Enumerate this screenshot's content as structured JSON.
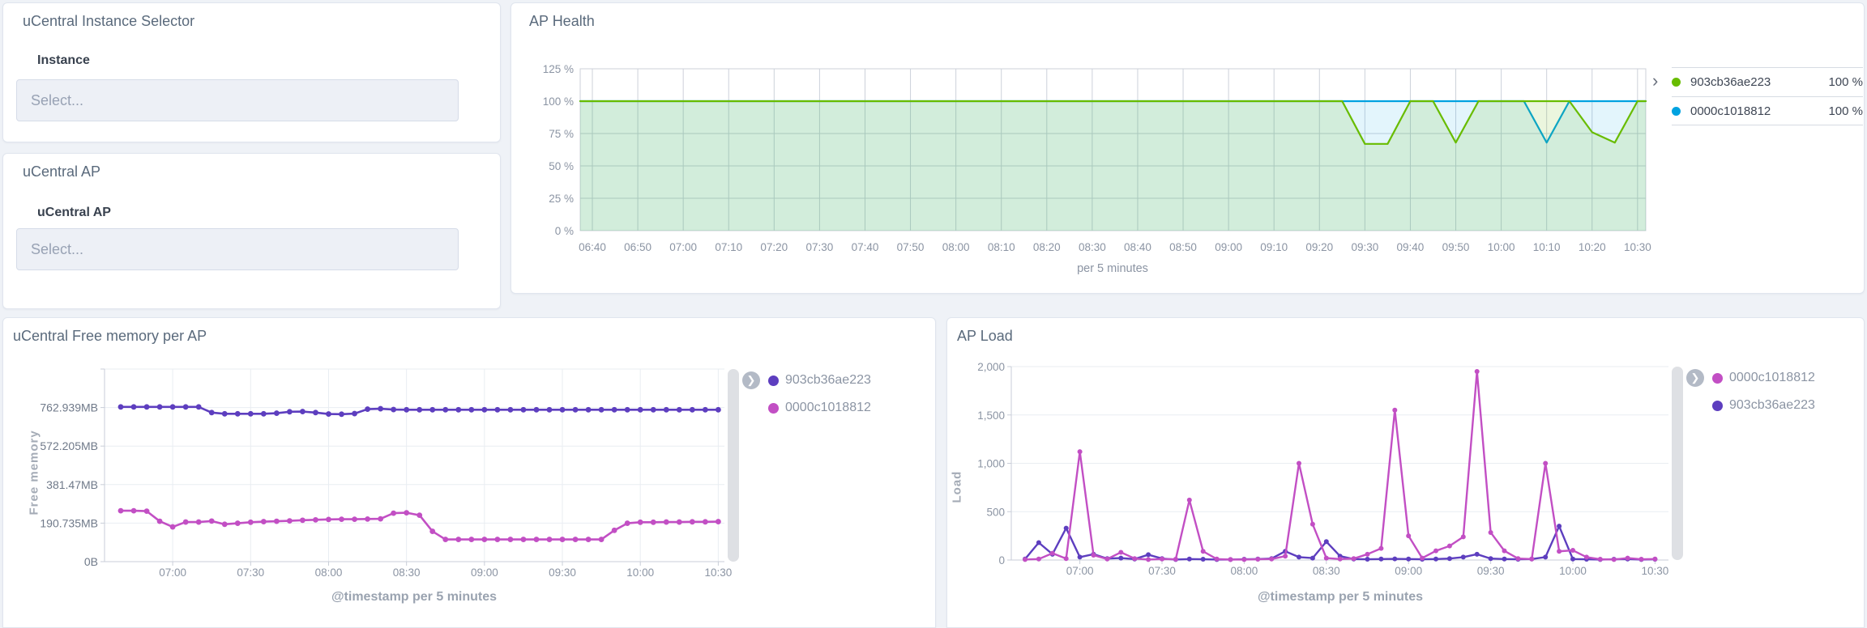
{
  "panels": {
    "instance_selector": {
      "title": "uCentral Instance Selector",
      "field_label": "Instance",
      "placeholder": "Select..."
    },
    "ap_selector": {
      "title": "uCentral AP",
      "field_label": "uCentral AP",
      "placeholder": "Select..."
    },
    "ap_health": {
      "title": "AP Health",
      "x_axis_label": "per 5 minutes",
      "legend": [
        {
          "label": "903cb36ae223",
          "value": "100 %",
          "color": "#68BC00"
        },
        {
          "label": "0000c1018812",
          "value": "100 %",
          "color": "#00A2E0"
        }
      ]
    },
    "free_memory": {
      "title": "uCentral Free memory per AP",
      "y_axis_label": "Free memory",
      "x_axis_label": "@timestamp per 5 minutes",
      "legend": [
        {
          "label": "903cb36ae223",
          "color": "#5D3EBF"
        },
        {
          "label": "0000c1018812",
          "color": "#C24FC4"
        }
      ]
    },
    "ap_load": {
      "title": "AP Load",
      "y_axis_label": "Load",
      "x_axis_label": "@timestamp per 5 minutes",
      "legend": [
        {
          "label": "0000c1018812",
          "color": "#C24FC4"
        },
        {
          "label": "903cb36ae223",
          "color": "#5D3EBF"
        }
      ]
    }
  },
  "chart_data": [
    {
      "id": "ap-health-chart",
      "type": "area",
      "title": "AP Health",
      "xlabel": "per 5 minutes",
      "ylabel": "",
      "x": [
        "06:40",
        "06:45",
        "06:50",
        "06:55",
        "07:00",
        "07:05",
        "07:10",
        "07:15",
        "07:20",
        "07:25",
        "07:30",
        "07:35",
        "07:40",
        "07:45",
        "07:50",
        "07:55",
        "08:00",
        "08:05",
        "08:10",
        "08:15",
        "08:20",
        "08:25",
        "08:30",
        "08:35",
        "08:40",
        "08:45",
        "08:50",
        "08:55",
        "09:00",
        "09:05",
        "09:10",
        "09:15",
        "09:20",
        "09:25",
        "09:30",
        "09:35",
        "09:40",
        "09:45",
        "09:50",
        "09:55",
        "10:00",
        "10:05",
        "10:10",
        "10:15",
        "10:20",
        "10:25",
        "10:30"
      ],
      "ylim": [
        0,
        125
      ],
      "grid": true,
      "legend_position": "right",
      "plot": {
        "l": 85,
        "t": 81,
        "r": 1400,
        "b": 281
      },
      "x_start": 100,
      "x_step": 28.04,
      "y_ticks": [
        {
          "v": 0,
          "label": "0 %"
        },
        {
          "v": 25,
          "label": "25 %"
        },
        {
          "v": 50,
          "label": "50 %"
        },
        {
          "v": 75,
          "label": "75 %"
        },
        {
          "v": 100,
          "label": "100 %"
        },
        {
          "v": 125,
          "label": "125 %"
        }
      ],
      "x_ticks": [
        {
          "i": 0,
          "label": "06:40"
        },
        {
          "i": 2,
          "label": "06:50"
        },
        {
          "i": 4,
          "label": "07:00"
        },
        {
          "i": 6,
          "label": "07:10"
        },
        {
          "i": 8,
          "label": "07:20"
        },
        {
          "i": 10,
          "label": "07:30"
        },
        {
          "i": 12,
          "label": "07:40"
        },
        {
          "i": 14,
          "label": "07:50"
        },
        {
          "i": 16,
          "label": "08:00"
        },
        {
          "i": 18,
          "label": "08:10"
        },
        {
          "i": 20,
          "label": "08:20"
        },
        {
          "i": 22,
          "label": "08:30"
        },
        {
          "i": 24,
          "label": "08:40"
        },
        {
          "i": 26,
          "label": "08:50"
        },
        {
          "i": 28,
          "label": "09:00"
        },
        {
          "i": 30,
          "label": "09:10"
        },
        {
          "i": 32,
          "label": "09:20"
        },
        {
          "i": 34,
          "label": "09:30"
        },
        {
          "i": 36,
          "label": "09:40"
        },
        {
          "i": 38,
          "label": "09:50"
        },
        {
          "i": 40,
          "label": "10:00"
        },
        {
          "i": 42,
          "label": "10:10"
        },
        {
          "i": 44,
          "label": "10:20"
        },
        {
          "i": 46,
          "label": "10:30"
        }
      ],
      "v_grid": true,
      "box": true,
      "extend": true,
      "line_width": 2.2,
      "grid_color": "#ccd1da",
      "y_label_x": 77,
      "x_label_y": 306,
      "series": [
        {
          "name": "0000c1018812",
          "color": "#00A2E0",
          "fill": "rgba(0,162,224,0.11)",
          "values": [
            100,
            100,
            100,
            100,
            100,
            100,
            100,
            100,
            100,
            100,
            100,
            100,
            100,
            100,
            100,
            100,
            100,
            100,
            100,
            100,
            100,
            100,
            100,
            100,
            100,
            100,
            100,
            100,
            100,
            100,
            100,
            100,
            100,
            100,
            100,
            100,
            100,
            100,
            100,
            100,
            100,
            100,
            68,
            100,
            100,
            100,
            100
          ]
        },
        {
          "name": "903cb36ae223",
          "color": "#68BC00",
          "fill": "rgba(104,188,0,0.13)",
          "values": [
            100,
            100,
            100,
            100,
            100,
            100,
            100,
            100,
            100,
            100,
            100,
            100,
            100,
            100,
            100,
            100,
            100,
            100,
            100,
            100,
            100,
            100,
            100,
            100,
            100,
            100,
            100,
            100,
            100,
            100,
            100,
            100,
            100,
            100,
            67,
            67,
            100,
            100,
            68,
            100,
            100,
            100,
            100,
            100,
            76,
            68,
            100
          ]
        }
      ]
    },
    {
      "id": "free-memory-chart",
      "type": "line",
      "title": "uCentral Free memory per AP",
      "xlabel": "@timestamp per 5 minutes",
      "ylabel": "Free memory",
      "x": [
        "06:40",
        "06:45",
        "06:50",
        "06:55",
        "07:00",
        "07:05",
        "07:10",
        "07:15",
        "07:20",
        "07:25",
        "07:30",
        "07:35",
        "07:40",
        "07:45",
        "07:50",
        "07:55",
        "08:00",
        "08:05",
        "08:10",
        "08:15",
        "08:20",
        "08:25",
        "08:30",
        "08:35",
        "08:40",
        "08:45",
        "08:50",
        "08:55",
        "09:00",
        "09:05",
        "09:10",
        "09:15",
        "09:20",
        "09:25",
        "09:30",
        "09:35",
        "09:40",
        "09:45",
        "09:50",
        "09:55",
        "10:00",
        "10:05",
        "10:10",
        "10:15",
        "10:20",
        "10:25",
        "10:30"
      ],
      "ylim": [
        0,
        953.675
      ],
      "unit": "MB",
      "grid": true,
      "legend_position": "right",
      "plot": {
        "l": 125,
        "t": 63,
        "r": 890,
        "b": 301
      },
      "x_start": 145,
      "x_step": 16.03,
      "y_ticks": [
        {
          "v": 0,
          "label": "0B"
        },
        {
          "v": 190.735,
          "label": "190.735MB"
        },
        {
          "v": 381.47,
          "label": "381.47MB"
        },
        {
          "v": 572.205,
          "label": "572.205MB"
        },
        {
          "v": 762.939,
          "label": "762.939MB"
        },
        {
          "v": 953.675
        }
      ],
      "x_ticks": [
        {
          "i": 4,
          "label": "07:00"
        },
        {
          "i": 10,
          "label": "07:30"
        },
        {
          "i": 16,
          "label": "08:00"
        },
        {
          "i": 22,
          "label": "08:30"
        },
        {
          "i": 28,
          "label": "09:00"
        },
        {
          "i": 34,
          "label": "09:30"
        },
        {
          "i": 40,
          "label": "10:00"
        },
        {
          "i": 46,
          "label": "10:30"
        }
      ],
      "v_grid": true,
      "axes": true,
      "dots": true,
      "dot_r": 3.4,
      "line_width": 2.6,
      "grid_color": "#e9edf2",
      "axis_color": "#c9ced8",
      "y_label_x": 117,
      "x_label_y": 319,
      "y_tick_class": "ylab",
      "series": [
        {
          "name": "903cb36ae223",
          "color": "#5D3EBF",
          "values": [
            766,
            766,
            766,
            766,
            766,
            766,
            766,
            738,
            732,
            732,
            732,
            732,
            735,
            742,
            743,
            738,
            731,
            730,
            733,
            755,
            757,
            753,
            752,
            752,
            752,
            752,
            752,
            752,
            752,
            752,
            752,
            752,
            752,
            752,
            752,
            752,
            752,
            752,
            752,
            752,
            752,
            752,
            752,
            752,
            752,
            752,
            752
          ]
        },
        {
          "name": "0000c1018812",
          "color": "#C24FC4",
          "values": [
            252,
            252,
            250,
            200,
            172,
            196,
            196,
            201,
            185,
            190,
            195,
            198,
            200,
            202,
            205,
            207,
            209,
            210,
            210,
            211,
            212,
            240,
            242,
            230,
            150,
            110,
            110,
            110,
            110,
            110,
            110,
            110,
            110,
            110,
            110,
            110,
            110,
            110,
            155,
            190,
            195,
            195,
            196,
            196,
            197,
            197,
            198
          ]
        }
      ]
    },
    {
      "id": "ap-load-chart",
      "type": "line",
      "title": "AP Load",
      "xlabel": "@timestamp per 5 minutes",
      "ylabel": "Load",
      "x": [
        "06:40",
        "06:45",
        "06:50",
        "06:55",
        "07:00",
        "07:05",
        "07:10",
        "07:15",
        "07:20",
        "07:25",
        "07:30",
        "07:35",
        "07:40",
        "07:45",
        "07:50",
        "07:55",
        "08:00",
        "08:05",
        "08:10",
        "08:15",
        "08:20",
        "08:25",
        "08:30",
        "08:35",
        "08:40",
        "08:45",
        "08:50",
        "08:55",
        "09:00",
        "09:05",
        "09:10",
        "09:15",
        "09:20",
        "09:25",
        "09:30",
        "09:35",
        "09:40",
        "09:45",
        "09:50",
        "09:55",
        "10:00",
        "10:05",
        "10:10",
        "10:15",
        "10:20",
        "10:25",
        "10:30"
      ],
      "ylim": [
        0,
        2000
      ],
      "grid": true,
      "legend_position": "right",
      "plot": {
        "l": 79,
        "t": 60,
        "r": 890,
        "b": 299
      },
      "x_start": 96,
      "x_step": 16.9,
      "y_ticks": [
        {
          "v": 0,
          "label": "0"
        },
        {
          "v": 500,
          "label": "500"
        },
        {
          "v": 1000,
          "label": "1,000"
        },
        {
          "v": 1500,
          "label": "1,500"
        },
        {
          "v": 2000,
          "label": "2,000"
        }
      ],
      "x_ticks": [
        {
          "i": 4,
          "label": "07:00"
        },
        {
          "i": 10,
          "label": "07:30"
        },
        {
          "i": 16,
          "label": "08:00"
        },
        {
          "i": 22,
          "label": "08:30"
        },
        {
          "i": 28,
          "label": "09:00"
        },
        {
          "i": 34,
          "label": "09:30"
        },
        {
          "i": 40,
          "label": "10:00"
        },
        {
          "i": 46,
          "label": "10:30"
        }
      ],
      "v_grid": false,
      "axes": true,
      "dots": true,
      "dot_r": 3.0,
      "line_width": 2.4,
      "grid_color": "#e9edf2",
      "axis_color": "#c9ced8",
      "y_label_x": 71,
      "x_label_y": 317,
      "series": [
        {
          "name": "903cb36ae223",
          "color": "#5D3EBF",
          "values": [
            10,
            180,
            60,
            330,
            30,
            60,
            15,
            20,
            10,
            55,
            15,
            5,
            10,
            8,
            5,
            5,
            8,
            10,
            15,
            90,
            30,
            20,
            190,
            40,
            10,
            8,
            10,
            12,
            10,
            8,
            10,
            15,
            30,
            60,
            15,
            10,
            8,
            10,
            30,
            350,
            10,
            8,
            5,
            8,
            10,
            5,
            8
          ]
        },
        {
          "name": "0000c1018812",
          "color": "#C24FC4",
          "values": [
            5,
            10,
            70,
            15,
            1120,
            50,
            10,
            80,
            15,
            5,
            10,
            8,
            620,
            90,
            10,
            5,
            5,
            8,
            10,
            40,
            1000,
            370,
            20,
            10,
            15,
            60,
            120,
            1550,
            250,
            20,
            95,
            145,
            240,
            1950,
            285,
            95,
            15,
            10,
            1000,
            90,
            100,
            30,
            8,
            5,
            20,
            8,
            10
          ]
        }
      ]
    }
  ]
}
